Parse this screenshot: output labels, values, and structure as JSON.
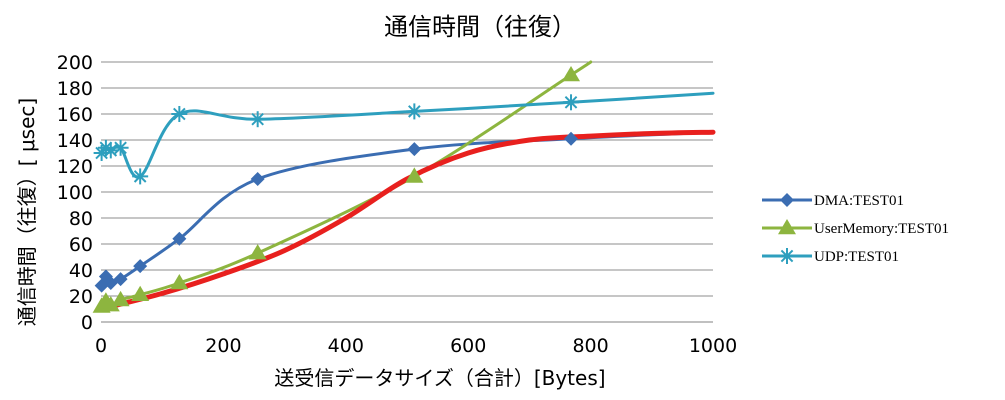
{
  "chart_data": {
    "type": "line",
    "title": "通信時間（往復）",
    "xlabel": "送受信データサイズ（合計）[Bytes]",
    "ylabel": "通信時間（往復）[ μsec]",
    "xlim": [
      0,
      1000
    ],
    "ylim": [
      0,
      200
    ],
    "xticks": [
      "0",
      "200",
      "400",
      "600",
      "800",
      "1000"
    ],
    "yticks": [
      "0",
      "20",
      "40",
      "60",
      "80",
      "100",
      "120",
      "140",
      "160",
      "180",
      "200"
    ],
    "grid": "horizontal",
    "legend_position": "right",
    "series": [
      {
        "name": "DMA:TEST01",
        "color": "#3b6db2",
        "marker": "diamond",
        "x": [
          1,
          8,
          16,
          32,
          64,
          128,
          256,
          512,
          768,
          1000
        ],
        "y": [
          28,
          35,
          30,
          33,
          43,
          64,
          110,
          133,
          141,
          146
        ]
      },
      {
        "name": "UserMemory:TEST01",
        "color": "#8db53f",
        "marker": "triangle",
        "x": [
          1,
          8,
          16,
          32,
          64,
          128,
          256,
          512,
          768,
          800
        ],
        "y": [
          12,
          16,
          13,
          17,
          21,
          30,
          53,
          112,
          190,
          200
        ]
      },
      {
        "name": "UDP:TEST01",
        "color": "#2e9fbe",
        "marker": "asterisk",
        "x": [
          1,
          8,
          16,
          32,
          64,
          128,
          256,
          512,
          768,
          1000
        ],
        "y": [
          130,
          134,
          132,
          134,
          112,
          160,
          156,
          162,
          169,
          176
        ]
      },
      {
        "name": "",
        "color": "#e8201e",
        "marker": "none",
        "x": [
          0,
          100,
          200,
          300,
          400,
          500,
          600,
          700,
          800,
          900,
          1000
        ],
        "y": [
          10,
          22,
          37,
          55,
          80,
          110,
          130,
          140,
          143,
          145,
          146
        ]
      }
    ]
  }
}
